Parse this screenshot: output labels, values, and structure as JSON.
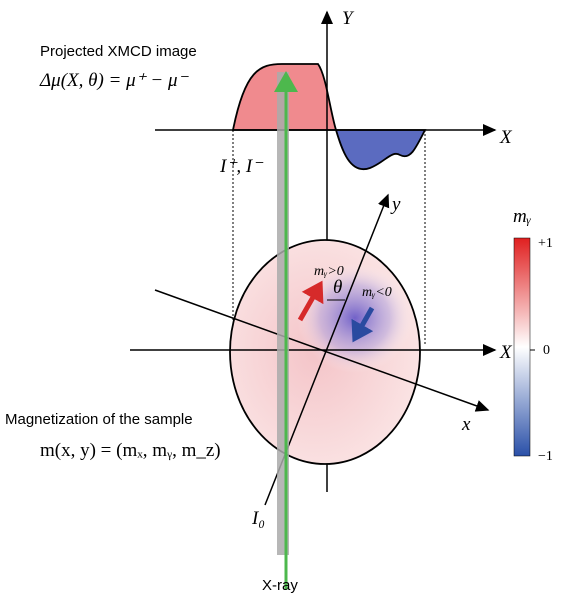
{
  "labels": {
    "y_axis_top": "Y",
    "projected_title": "Projected XMCD image",
    "formula": "Δμ(X, θ) = μ⁺ − μ⁻",
    "x_axis_top": "X",
    "intensities": "I⁺, I⁻",
    "y_rotated": "y",
    "colorbar_title": "mᵧ",
    "colorbar_max": "+1",
    "colorbar_mid": "0",
    "colorbar_min": "−1",
    "my_positive": "mᵧ>0",
    "theta": "θ",
    "my_negative": "mᵧ<0",
    "x_axis_mid": "X",
    "x_rotated": "x",
    "magnetization_title": "Magnetization of the sample",
    "magnetization_formula": "m(x, y) = (mₓ, mᵧ, m_z)",
    "incident": "I₀",
    "xray": "X-ray"
  }
}
